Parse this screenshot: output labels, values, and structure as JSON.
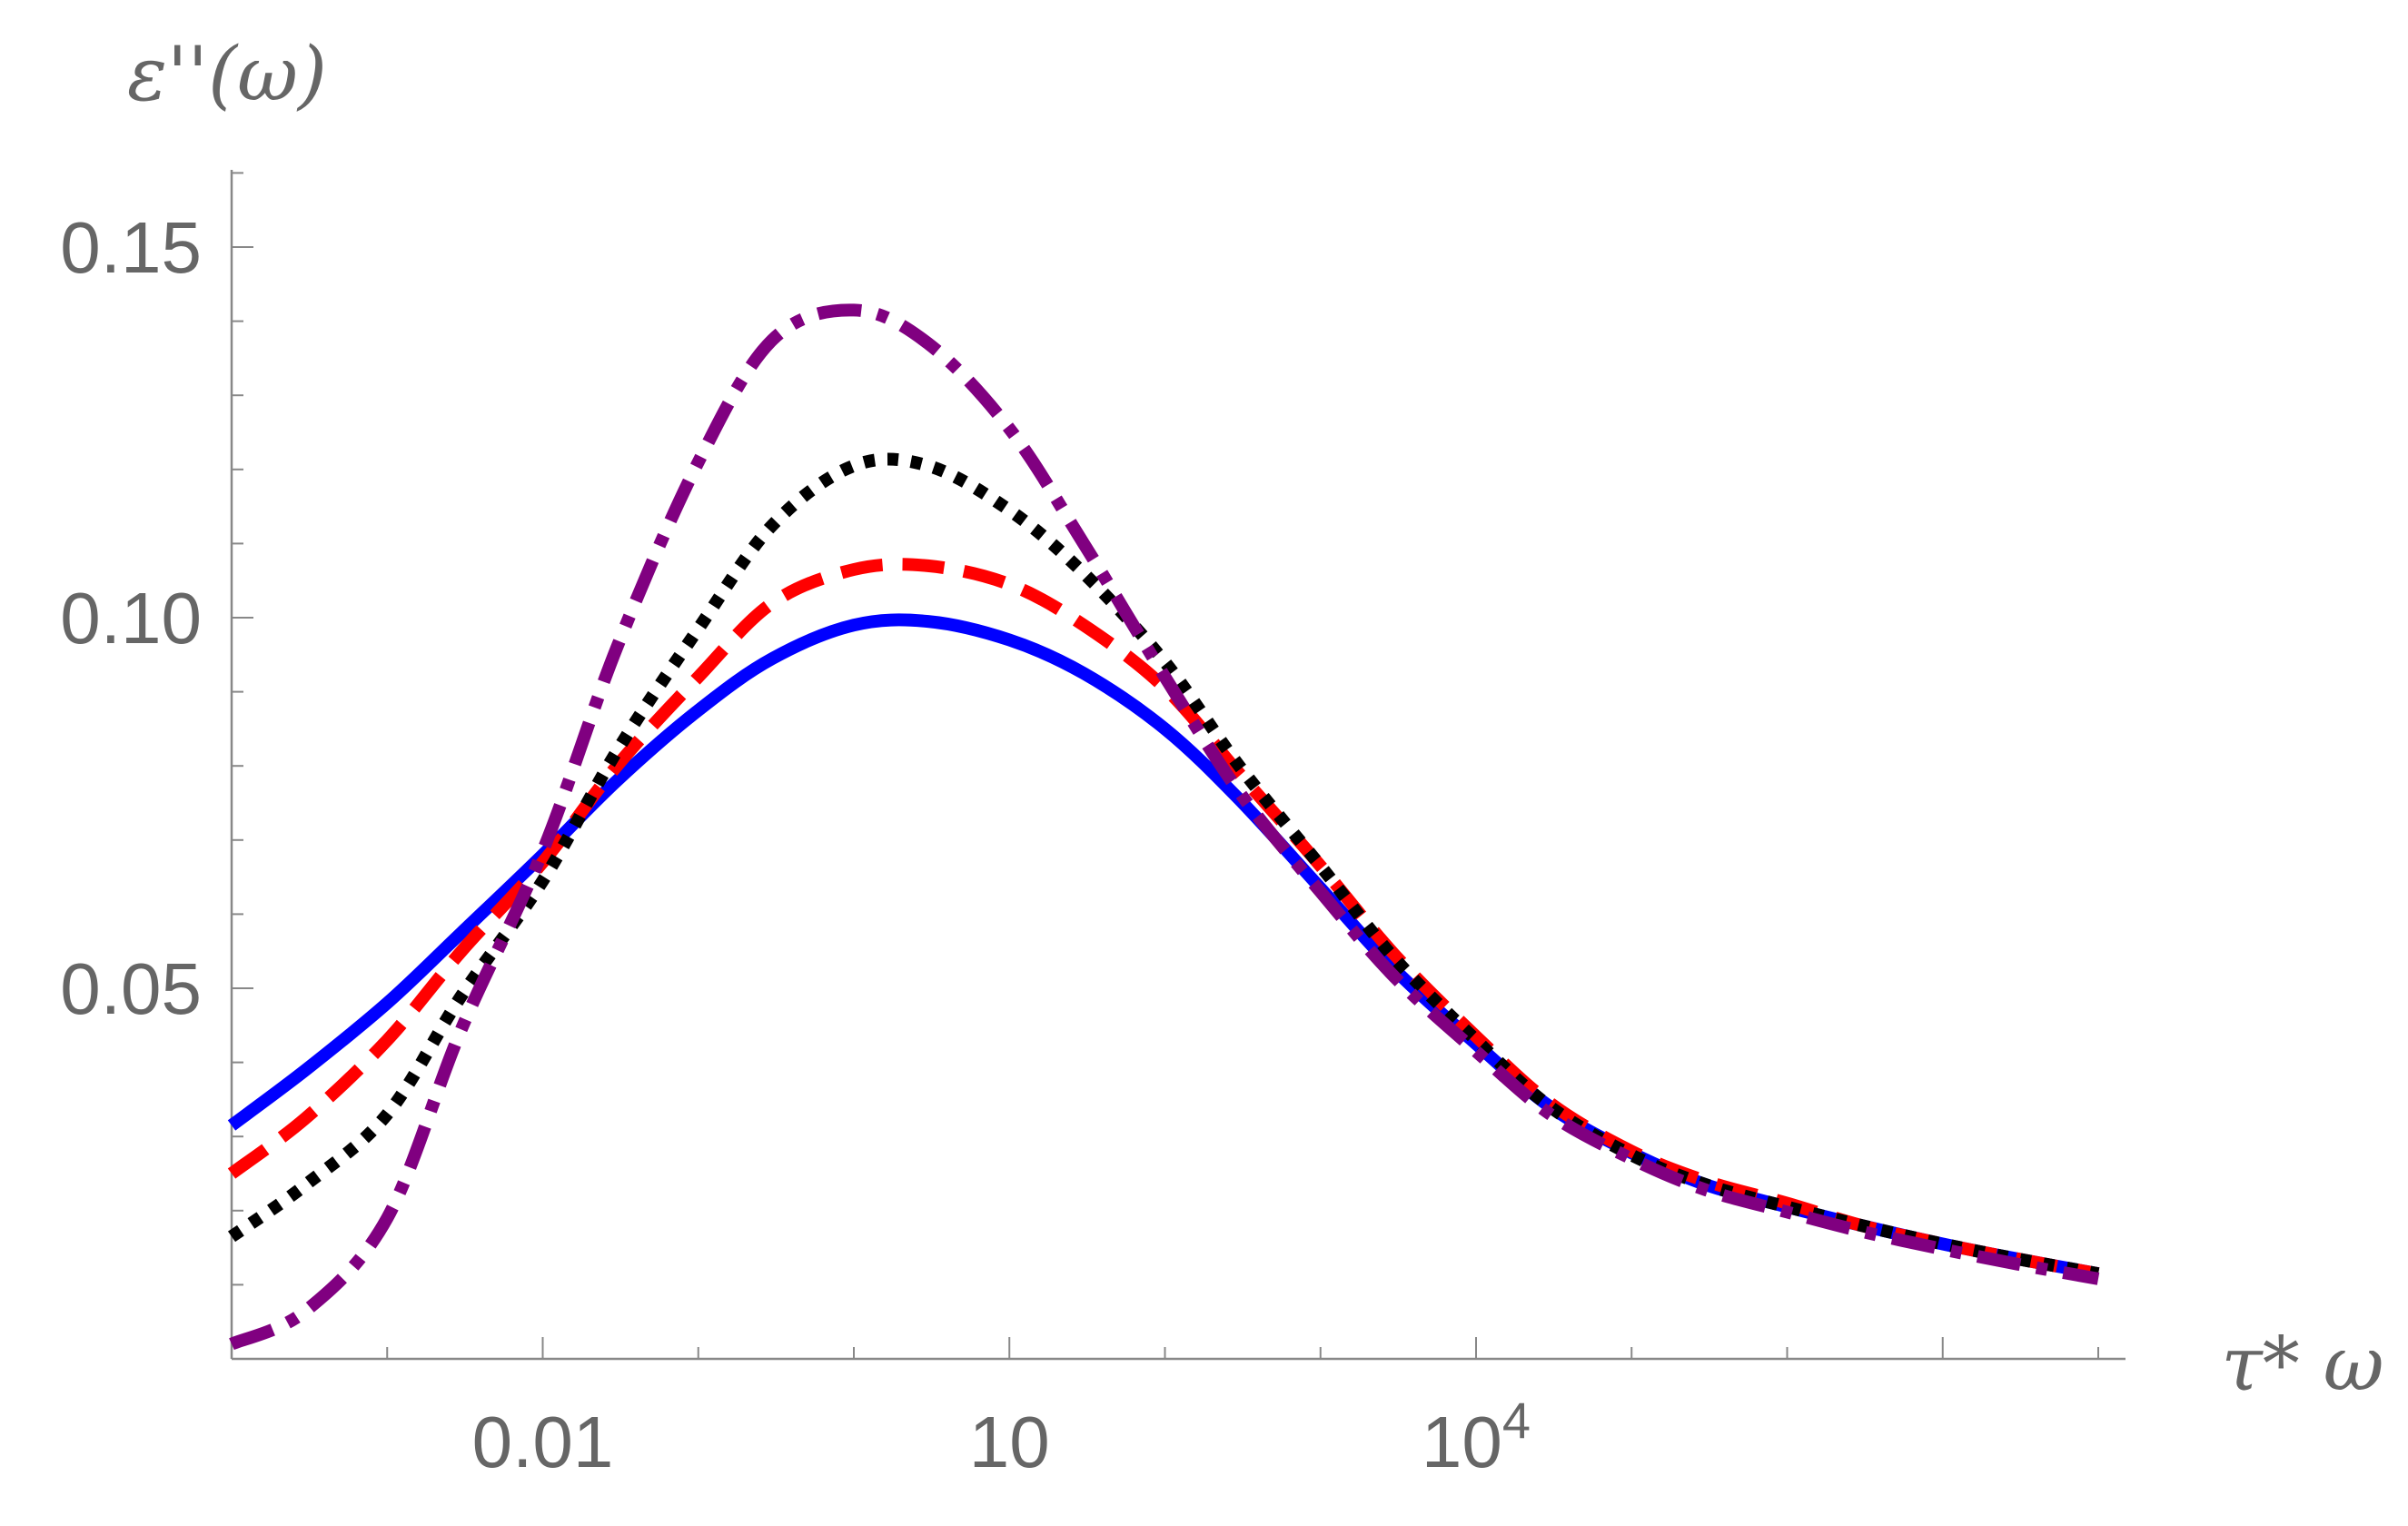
{
  "chart_data": {
    "type": "line",
    "ylabel": "ε''(ω)",
    "xlabel": "τ* ω",
    "x_scale": "log",
    "xlim": [
      0.0001,
      100000000
    ],
    "ylim": [
      0.0,
      0.16
    ],
    "grid": false,
    "legend": "none",
    "x_ticks": [
      {
        "value": 0.01,
        "label": "0.01"
      },
      {
        "value": 10,
        "label": "10"
      },
      {
        "value": 10000,
        "label": "10^4"
      }
    ],
    "y_ticks": [
      {
        "value": 0.05,
        "label": "0.05"
      },
      {
        "value": 0.1,
        "label": "0.10"
      },
      {
        "value": 0.15,
        "label": "0.15"
      }
    ],
    "series": [
      {
        "style": "solid",
        "color": "#0000ff",
        "x": [
          0.0001,
          0.0003,
          0.001,
          0.003,
          0.01,
          0.03,
          0.1,
          0.3,
          1,
          3,
          10,
          30,
          100,
          300,
          1000,
          3000,
          10000,
          30000,
          100000,
          300000,
          1000000,
          3000000,
          10000000,
          30000000,
          100000000
        ],
        "y": [
          0.0315,
          0.039,
          0.048,
          0.0575,
          0.068,
          0.078,
          0.0875,
          0.0945,
          0.099,
          0.0995,
          0.097,
          0.0925,
          0.085,
          0.0755,
          0.0635,
          0.0525,
          0.0425,
          0.034,
          0.0278,
          0.0235,
          0.0205,
          0.018,
          0.0155,
          0.0135,
          0.0115
        ]
      },
      {
        "style": "dashed",
        "color": "#ff0000",
        "x": [
          0.0001,
          0.0003,
          0.001,
          0.003,
          0.01,
          0.03,
          0.1,
          0.3,
          1,
          3,
          10,
          30,
          100,
          300,
          1000,
          3000,
          10000,
          30000,
          100000,
          300000,
          1000000,
          3000000,
          10000000,
          30000000,
          100000000
        ],
        "y": [
          0.025,
          0.0325,
          0.043,
          0.055,
          0.067,
          0.08,
          0.092,
          0.102,
          0.1065,
          0.107,
          0.1045,
          0.099,
          0.0905,
          0.079,
          0.0665,
          0.0545,
          0.0435,
          0.0345,
          0.028,
          0.024,
          0.021,
          0.018,
          0.0155,
          0.0135,
          0.0115
        ]
      },
      {
        "style": "dotted",
        "color": "#000000",
        "x": [
          0.0001,
          0.0003,
          0.001,
          0.003,
          0.01,
          0.03,
          0.1,
          0.3,
          1,
          3,
          10,
          30,
          100,
          300,
          1000,
          3000,
          10000,
          30000,
          100000,
          300000,
          1000000,
          3000000,
          10000000,
          30000000,
          100000000
        ],
        "y": [
          0.0165,
          0.0235,
          0.033,
          0.049,
          0.0645,
          0.082,
          0.0985,
          0.1125,
          0.1205,
          0.1205,
          0.1145,
          0.106,
          0.094,
          0.08,
          0.0665,
          0.054,
          0.043,
          0.034,
          0.0275,
          0.0235,
          0.0205,
          0.018,
          0.0155,
          0.0135,
          0.0115
        ]
      },
      {
        "style": "dashdot",
        "color": "#800080",
        "x": [
          0.0001,
          0.0003,
          0.001,
          0.003,
          0.01,
          0.03,
          0.1,
          0.3,
          1,
          3,
          10,
          30,
          100,
          300,
          1000,
          3000,
          10000,
          30000,
          100000,
          300000,
          1000000,
          3000000,
          10000000,
          30000000,
          100000000
        ],
        "y": [
          0.002,
          0.0065,
          0.019,
          0.0445,
          0.0685,
          0.096,
          0.121,
          0.1375,
          0.1415,
          0.137,
          0.1255,
          0.11,
          0.092,
          0.0765,
          0.063,
          0.0515,
          0.0415,
          0.033,
          0.027,
          0.0228,
          0.0198,
          0.0172,
          0.0148,
          0.0128,
          0.0108
        ]
      }
    ]
  }
}
